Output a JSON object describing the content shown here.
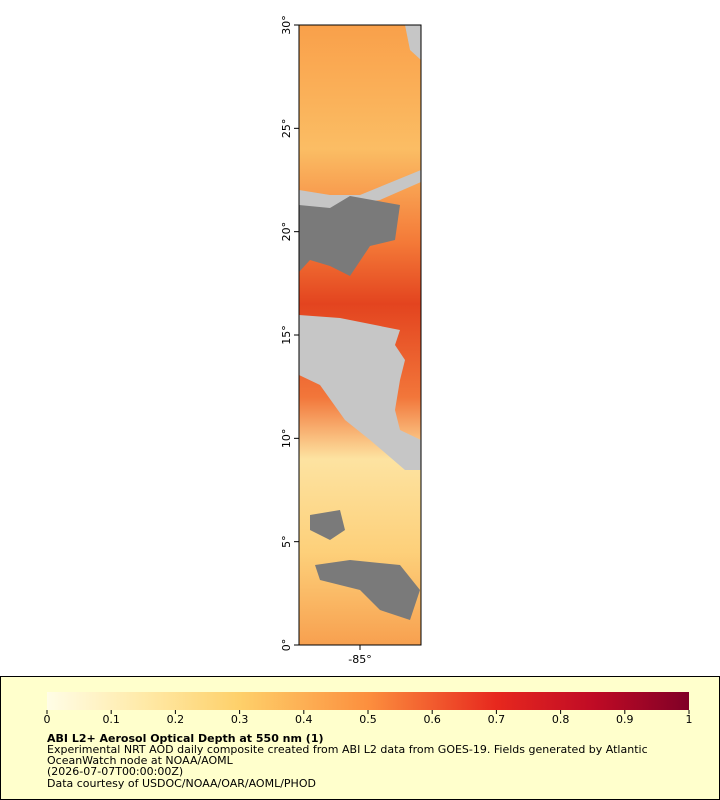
{
  "map": {
    "lat_ticks": [
      {
        "value": 0,
        "label": "0°"
      },
      {
        "value": 5,
        "label": "5°"
      },
      {
        "value": 10,
        "label": "10°"
      },
      {
        "value": 15,
        "label": "15°"
      },
      {
        "value": 20,
        "label": "20°"
      },
      {
        "value": 25,
        "label": "25°"
      },
      {
        "value": 30,
        "label": "30°"
      }
    ],
    "lat_lim": [
      0,
      30
    ],
    "lon_ticks": [
      {
        "value": -85,
        "label": "-85°"
      }
    ],
    "lon_lim": [
      -88,
      -82
    ]
  },
  "colorbar": {
    "lim": [
      0,
      1
    ],
    "ticks": [
      0,
      0.1,
      0.2,
      0.3,
      0.4,
      0.5,
      0.6,
      0.7,
      0.8,
      0.9,
      1
    ]
  },
  "legend": {
    "title": "ABI L2+ Aerosol Optical Depth at 550 nm (1)",
    "lines": [
      "Experimental NRT AOD daily composite created from ABI L2 data from GOES-19. Fields generated by Atlantic",
      "OceanWatch node at NOAA/AOML",
      "(2026-07-07T00:00:00Z)",
      "Data courtesy of USDOC/NOAA/OAR/AOML/PHOD"
    ]
  }
}
